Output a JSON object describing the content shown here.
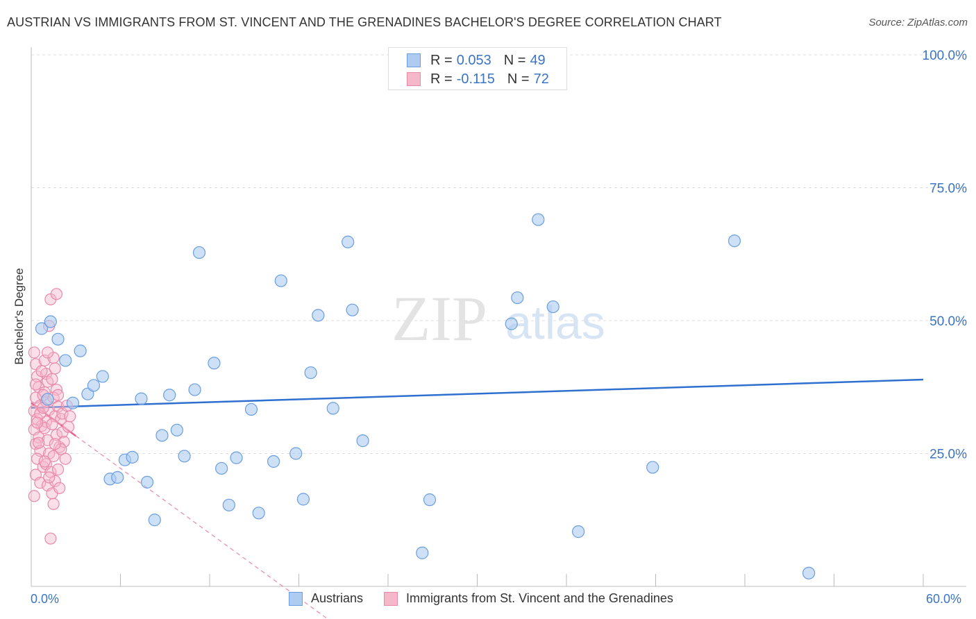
{
  "header": {
    "title": "AUSTRIAN VS IMMIGRANTS FROM ST. VINCENT AND THE GRENADINES BACHELOR'S DEGREE CORRELATION CHART",
    "source": "Source: ZipAtlas.com"
  },
  "watermark": {
    "text_zip": "ZIP",
    "text_atlas": "atlas"
  },
  "legend": {
    "rows": [
      {
        "r_label": "R =",
        "r_value": "0.053",
        "n_label": "N =",
        "n_value": "49"
      },
      {
        "r_label": "R =",
        "r_value": "-0.115",
        "n_label": "N =",
        "n_value": "72"
      }
    ]
  },
  "bottom_legend": {
    "series1": "Austrians",
    "series2": "Immigrants from St. Vincent and the Grenadines"
  },
  "colors": {
    "blue_fill": "#aecbf0",
    "blue_stroke": "#6a9ee0",
    "blue_line": "#2f6fcf",
    "pink_fill": "#f5b8cb",
    "pink_stroke": "#ea88a8",
    "pink_line": "#e8608c",
    "axis_text": "#3a74c4",
    "grid": "#dddddd"
  },
  "chart_data": {
    "type": "scatter",
    "title": "AUSTRIAN VS IMMIGRANTS FROM ST. VINCENT AND THE GRENADINES BACHELOR'S DEGREE CORRELATION CHART",
    "xlabel": "",
    "ylabel": "Bachelor's Degree",
    "xlim": [
      0,
      60
    ],
    "ylim": [
      0,
      100
    ],
    "x_tick_labels": [
      "0.0%",
      "60.0%"
    ],
    "y_ticks": [
      25,
      50,
      75,
      100
    ],
    "y_tick_labels": [
      "25.0%",
      "50.0%",
      "75.0%",
      "100.0%"
    ],
    "series": [
      {
        "name": "Austrians",
        "color": "#6a9ee0",
        "r": 0.053,
        "n": 49,
        "trend": {
          "x": [
            0,
            60
          ],
          "y": [
            33.6,
            38.9
          ]
        },
        "points": [
          [
            0.7,
            48.5
          ],
          [
            1.3,
            49.8
          ],
          [
            1.8,
            46.5
          ],
          [
            2.3,
            42.5
          ],
          [
            3.3,
            44.3
          ],
          [
            1.1,
            35.2
          ],
          [
            2.8,
            34.5
          ],
          [
            3.8,
            36.2
          ],
          [
            4.2,
            37.8
          ],
          [
            4.8,
            39.5
          ],
          [
            5.3,
            20.2
          ],
          [
            5.8,
            20.5
          ],
          [
            6.3,
            23.8
          ],
          [
            6.8,
            24.3
          ],
          [
            7.4,
            35.3
          ],
          [
            7.8,
            19.6
          ],
          [
            8.3,
            12.5
          ],
          [
            8.8,
            28.4
          ],
          [
            9.3,
            36.0
          ],
          [
            9.8,
            29.4
          ],
          [
            10.3,
            24.5
          ],
          [
            11.0,
            37.0
          ],
          [
            11.3,
            62.8
          ],
          [
            12.3,
            42.0
          ],
          [
            12.8,
            22.2
          ],
          [
            13.3,
            15.3
          ],
          [
            13.8,
            24.2
          ],
          [
            14.8,
            33.3
          ],
          [
            15.3,
            13.8
          ],
          [
            16.3,
            23.5
          ],
          [
            16.8,
            57.5
          ],
          [
            17.8,
            25.0
          ],
          [
            18.3,
            16.4
          ],
          [
            18.8,
            40.2
          ],
          [
            19.3,
            51.0
          ],
          [
            20.3,
            33.5
          ],
          [
            21.3,
            64.8
          ],
          [
            21.6,
            52.0
          ],
          [
            22.3,
            27.4
          ],
          [
            26.3,
            6.3
          ],
          [
            26.8,
            16.3
          ],
          [
            32.3,
            49.4
          ],
          [
            32.7,
            54.3
          ],
          [
            34.1,
            69.0
          ],
          [
            35.1,
            52.6
          ],
          [
            36.8,
            10.3
          ],
          [
            41.8,
            22.4
          ],
          [
            47.3,
            65.0
          ],
          [
            52.3,
            2.5
          ]
        ]
      },
      {
        "name": "Immigrants from St. Vincent and the Grenadines",
        "color": "#ea88a8",
        "r": -0.115,
        "n": 72,
        "trend": {
          "x": [
            0,
            3.0
          ],
          "y": [
            34.5,
            28.3
          ]
        },
        "trend_ext": {
          "x": [
            3.0,
            21.6
          ],
          "y": [
            28.3,
            -9.5
          ]
        },
        "points": [
          [
            0.2,
            44.0
          ],
          [
            0.3,
            41.8
          ],
          [
            0.4,
            39.5
          ],
          [
            0.5,
            37.5
          ],
          [
            0.3,
            35.5
          ],
          [
            0.6,
            34.0
          ],
          [
            0.2,
            33.0
          ],
          [
            0.4,
            31.5
          ],
          [
            0.7,
            30.2
          ],
          [
            0.2,
            29.5
          ],
          [
            0.5,
            28.0
          ],
          [
            0.3,
            26.8
          ],
          [
            0.6,
            25.5
          ],
          [
            0.4,
            24.0
          ],
          [
            0.8,
            22.5
          ],
          [
            0.3,
            21.0
          ],
          [
            0.6,
            19.5
          ],
          [
            0.2,
            17.0
          ],
          [
            0.9,
            42.5
          ],
          [
            1.0,
            40.0
          ],
          [
            1.1,
            38.5
          ],
          [
            0.9,
            36.5
          ],
          [
            1.0,
            34.8
          ],
          [
            1.2,
            33.2
          ],
          [
            1.0,
            31.0
          ],
          [
            0.9,
            29.8
          ],
          [
            1.1,
            27.5
          ],
          [
            1.2,
            25.0
          ],
          [
            1.0,
            23.0
          ],
          [
            1.3,
            21.5
          ],
          [
            1.1,
            19.0
          ],
          [
            1.4,
            17.5
          ],
          [
            1.5,
            43.0
          ],
          [
            1.6,
            41.0
          ],
          [
            1.4,
            39.0
          ],
          [
            1.7,
            37.0
          ],
          [
            1.5,
            35.5
          ],
          [
            1.8,
            33.8
          ],
          [
            1.6,
            32.0
          ],
          [
            1.4,
            30.5
          ],
          [
            1.7,
            28.5
          ],
          [
            1.9,
            26.2
          ],
          [
            1.5,
            24.5
          ],
          [
            1.8,
            22.0
          ],
          [
            1.6,
            19.8
          ],
          [
            1.3,
            54.0
          ],
          [
            1.7,
            55.0
          ],
          [
            1.2,
            49.0
          ],
          [
            2.0,
            31.5
          ],
          [
            2.1,
            29.0
          ],
          [
            2.2,
            27.2
          ],
          [
            2.0,
            25.8
          ],
          [
            2.3,
            24.0
          ],
          [
            2.1,
            32.5
          ],
          [
            2.4,
            34.0
          ],
          [
            2.6,
            32.0
          ],
          [
            2.5,
            30.0
          ],
          [
            1.9,
            18.5
          ],
          [
            1.3,
            9.0
          ],
          [
            1.5,
            15.5
          ],
          [
            0.8,
            36.0
          ],
          [
            0.6,
            32.5
          ],
          [
            0.3,
            38.0
          ],
          [
            0.7,
            40.5
          ],
          [
            1.1,
            44.0
          ],
          [
            0.5,
            27.0
          ],
          [
            0.9,
            23.5
          ],
          [
            1.2,
            20.5
          ],
          [
            0.4,
            30.8
          ],
          [
            1.6,
            26.8
          ],
          [
            0.8,
            33.6
          ],
          [
            1.8,
            36.0
          ]
        ]
      }
    ]
  }
}
